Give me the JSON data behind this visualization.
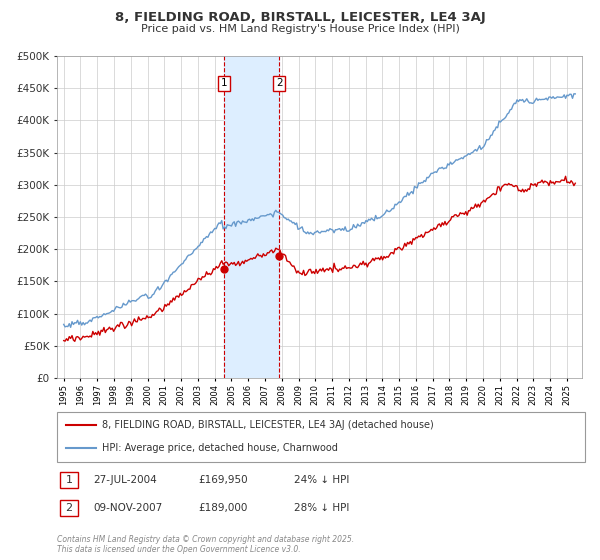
{
  "title": "8, FIELDING ROAD, BIRSTALL, LEICESTER, LE4 3AJ",
  "subtitle": "Price paid vs. HM Land Registry's House Price Index (HPI)",
  "legend_line1": "8, FIELDING ROAD, BIRSTALL, LEICESTER, LE4 3AJ (detached house)",
  "legend_line2": "HPI: Average price, detached house, Charnwood",
  "annotation1_date": "27-JUL-2004",
  "annotation1_price": "£169,950",
  "annotation1_hpi": "24% ↓ HPI",
  "annotation2_date": "09-NOV-2007",
  "annotation2_price": "£189,000",
  "annotation2_hpi": "28% ↓ HPI",
  "copyright": "Contains HM Land Registry data © Crown copyright and database right 2025.\nThis data is licensed under the Open Government Licence v3.0.",
  "hpi_color": "#6699cc",
  "price_color": "#cc0000",
  "vline_color": "#cc0000",
  "shade_color": "#ddeeff",
  "background_color": "#ffffff",
  "grid_color": "#cccccc",
  "ylim": [
    0,
    500000
  ],
  "yticks": [
    0,
    50000,
    100000,
    150000,
    200000,
    250000,
    300000,
    350000,
    400000,
    450000,
    500000
  ],
  "purchase1_year": 2004.57,
  "purchase2_year": 2007.86,
  "purchase1_price": 169950,
  "purchase2_price": 189000
}
